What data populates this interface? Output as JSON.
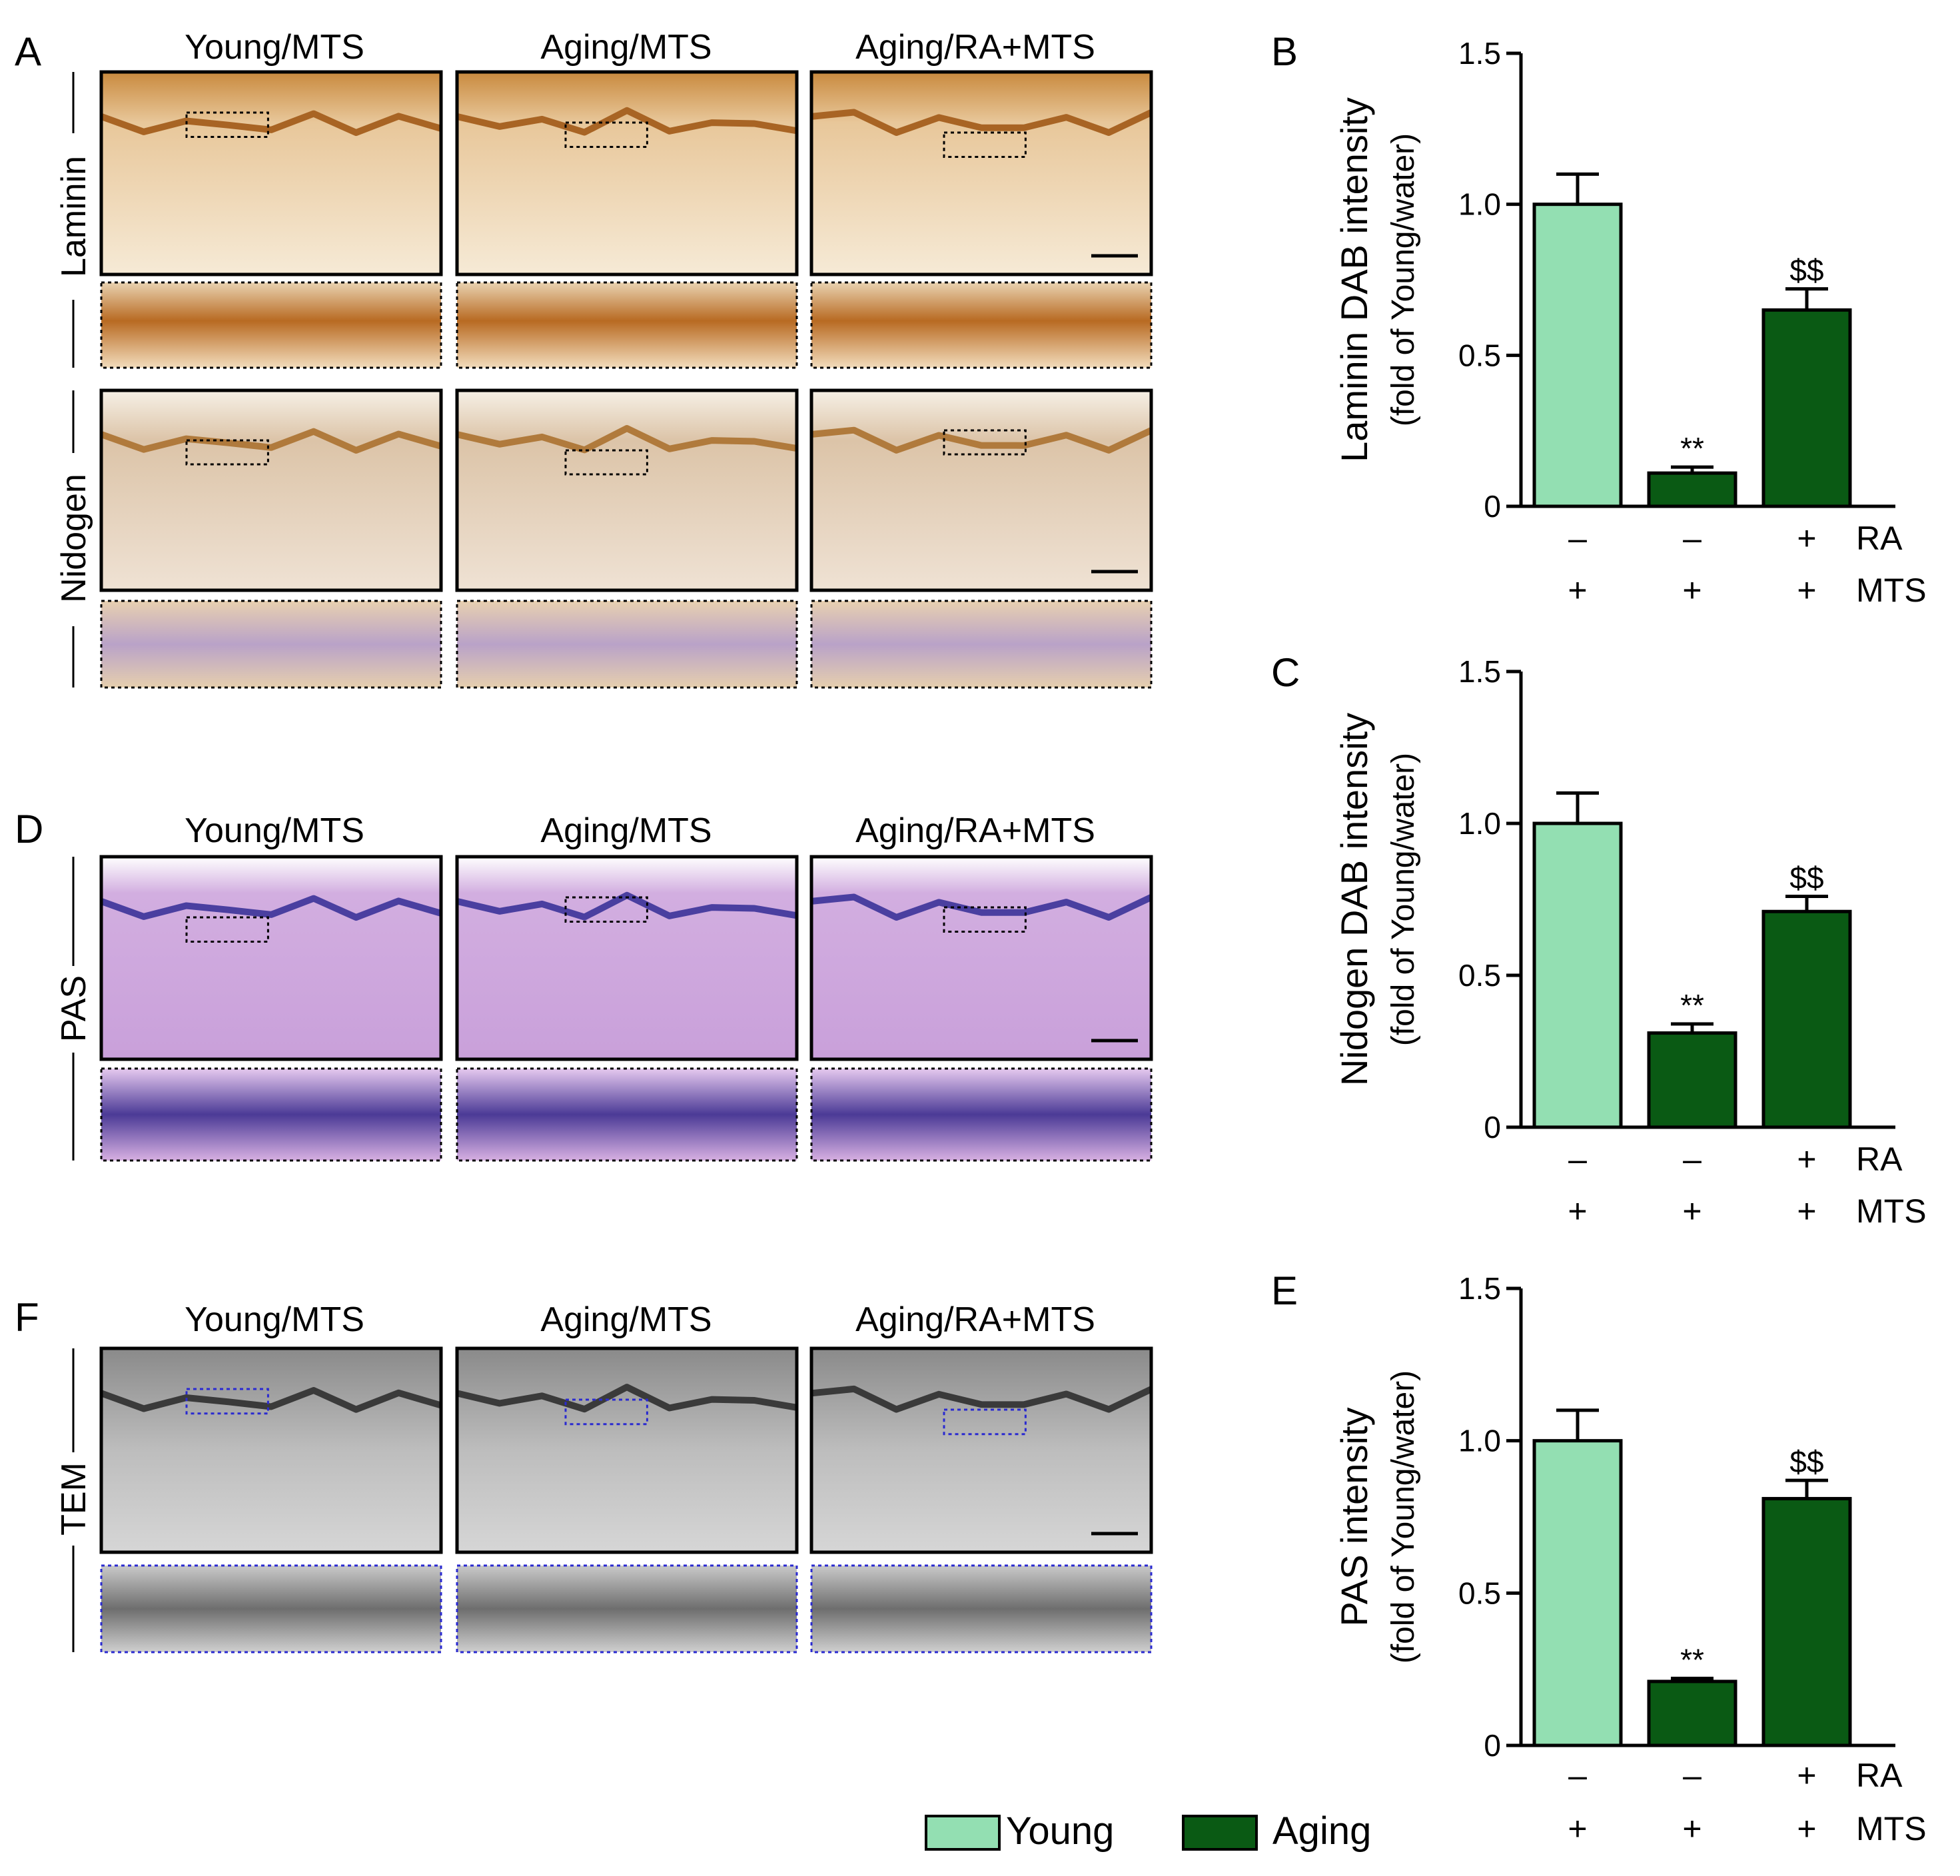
{
  "panel_letters": {
    "A": "A",
    "B": "B",
    "C": "C",
    "D": "D",
    "E": "E",
    "F": "F"
  },
  "column_titles": [
    "Young/MTS",
    "Aging/MTS",
    "Aging/RA+MTS"
  ],
  "row_labels": {
    "laminin": "Laminin",
    "nidogen": "Nidogen",
    "pas": "PAS",
    "tem": "TEM"
  },
  "colors": {
    "young": "#93dfb2",
    "aging": "#0a5a14",
    "stain_brown": "#d7a461",
    "stain_purple": "#c8a0d8",
    "stain_blue": "#4a3fa0",
    "tem_gray": "#9a9a9a",
    "zoom_dotted_blue": "#2a2ad0"
  },
  "legend": [
    {
      "name": "Young",
      "color": "#93dfb2"
    },
    {
      "name": "Aging",
      "color": "#0a5a14"
    }
  ],
  "condition_rows": [
    {
      "name": "RA",
      "values": [
        "–",
        "–",
        "+"
      ]
    },
    {
      "name": "MTS",
      "values": [
        "+",
        "+",
        "+"
      ]
    }
  ],
  "chart_data": [
    {
      "panel": "B",
      "type": "bar",
      "categories": [
        "Young/MTS",
        "Aging/MTS",
        "Aging/RA+MTS"
      ],
      "groups": [
        "Young",
        "Aging",
        "Aging"
      ],
      "values": [
        1.0,
        0.11,
        0.65
      ],
      "errors": [
        0.1,
        0.02,
        0.07
      ],
      "annotations": [
        "",
        "**",
        "$$"
      ],
      "ylabel": "Laminin DAB intensity",
      "ylabel2": "(fold of Young/water)",
      "ylim": [
        0,
        1.5
      ],
      "yticks": [
        0,
        0.5,
        1.0,
        1.5
      ],
      "ytick_labels": [
        "0",
        "0.5",
        "1.0",
        "1.5"
      ]
    },
    {
      "panel": "C",
      "type": "bar",
      "categories": [
        "Young/MTS",
        "Aging/MTS",
        "Aging/RA+MTS"
      ],
      "groups": [
        "Young",
        "Aging",
        "Aging"
      ],
      "values": [
        1.0,
        0.31,
        0.71
      ],
      "errors": [
        0.1,
        0.03,
        0.05
      ],
      "annotations": [
        "",
        "**",
        "$$"
      ],
      "ylabel": "Nidogen DAB intensity",
      "ylabel2": "(fold of Young/water)",
      "ylim": [
        0,
        1.5
      ],
      "yticks": [
        0,
        0.5,
        1.0,
        1.5
      ],
      "ytick_labels": [
        "0",
        "0.5",
        "1.0",
        "1.5"
      ]
    },
    {
      "panel": "E",
      "type": "bar",
      "categories": [
        "Young/MTS",
        "Aging/MTS",
        "Aging/RA+MTS"
      ],
      "groups": [
        "Young",
        "Aging",
        "Aging"
      ],
      "values": [
        1.0,
        0.21,
        0.81
      ],
      "errors": [
        0.1,
        0.01,
        0.06
      ],
      "annotations": [
        "",
        "**",
        "$$"
      ],
      "ylabel": "PAS intensity",
      "ylabel2": "(fold of Young/water)",
      "ylim": [
        0,
        1.5
      ],
      "yticks": [
        0,
        0.5,
        1.0,
        1.5
      ],
      "ytick_labels": [
        "0",
        "0.5",
        "1.0",
        "1.5"
      ]
    }
  ]
}
